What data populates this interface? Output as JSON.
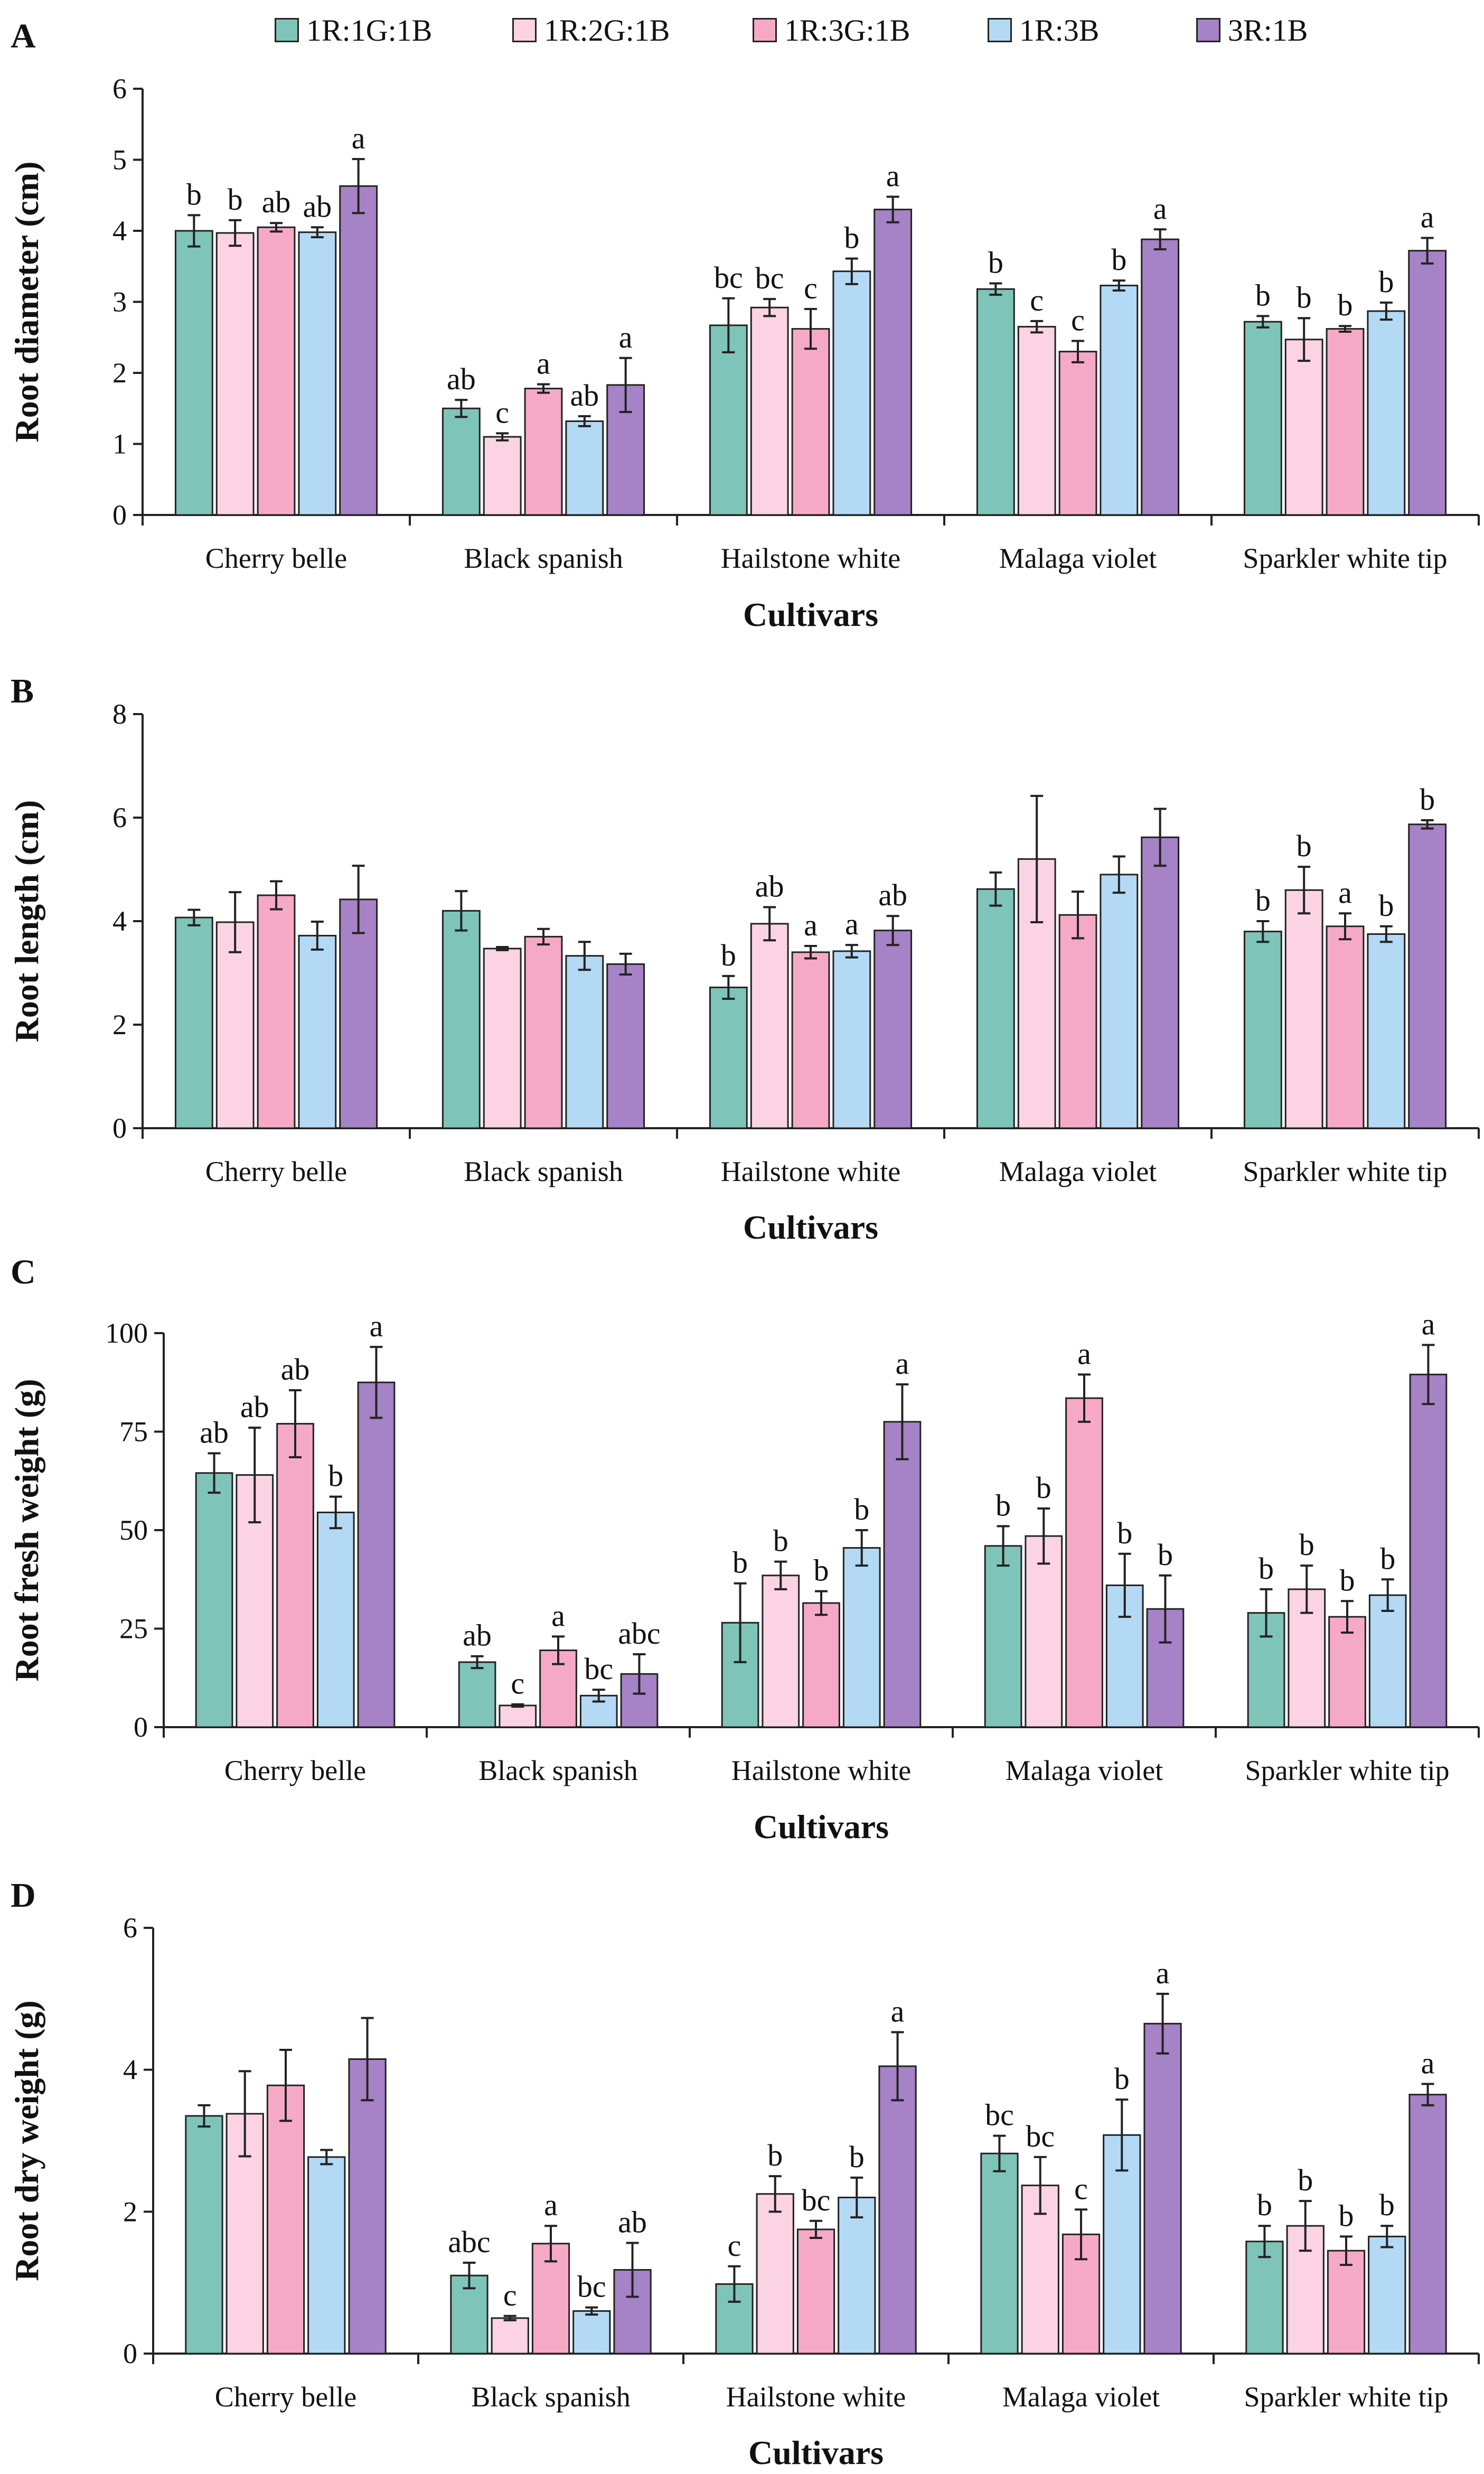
{
  "legend": {
    "items": [
      {
        "label": "1R:1G:1B",
        "color": "#7fc4b8"
      },
      {
        "label": "1R:2G:1B",
        "color": "#fbd3e3"
      },
      {
        "label": "1R:3G:1B",
        "color": "#f6a9c6"
      },
      {
        "label": "1R:3B",
        "color": "#b3d9f5"
      },
      {
        "label": "3R:1B",
        "color": "#a682c6"
      }
    ]
  },
  "chart_data": [
    {
      "type": "bar",
      "panel": "A",
      "xlabel": "Cultivars",
      "ylabel": "Root diameter (cm)",
      "ylim": [
        0,
        6
      ],
      "yticks": [
        "0",
        "1",
        "2",
        "3",
        "4",
        "5",
        "6"
      ],
      "categories": [
        "Cherry belle",
        "Black spanish",
        "Hailstone white",
        "Malaga violet",
        "Sparkler white tip"
      ],
      "series": [
        {
          "name": "1R:1G:1B",
          "values": [
            4.0,
            1.5,
            2.67,
            3.18,
            2.72
          ],
          "errors": [
            0.22,
            0.12,
            0.38,
            0.08,
            0.08
          ],
          "letters": [
            "b",
            "ab",
            "bc",
            "b",
            "b"
          ]
        },
        {
          "name": "1R:2G:1B",
          "values": [
            3.97,
            1.1,
            2.92,
            2.65,
            2.47
          ],
          "errors": [
            0.18,
            0.05,
            0.12,
            0.08,
            0.3
          ],
          "letters": [
            "b",
            "c",
            "bc",
            "c",
            "b"
          ]
        },
        {
          "name": "1R:3G:1B",
          "values": [
            4.05,
            1.78,
            2.62,
            2.3,
            2.62
          ],
          "errors": [
            0.06,
            0.06,
            0.28,
            0.15,
            0.04
          ],
          "letters": [
            "ab",
            "a",
            "c",
            "c",
            "b"
          ]
        },
        {
          "name": "1R:3B",
          "values": [
            3.98,
            1.32,
            3.43,
            3.23,
            2.87
          ],
          "errors": [
            0.07,
            0.07,
            0.18,
            0.07,
            0.12
          ],
          "letters": [
            "ab",
            "ab",
            "b",
            "b",
            "b"
          ]
        },
        {
          "name": "3R:1B",
          "values": [
            4.63,
            1.83,
            4.3,
            3.88,
            3.72
          ],
          "errors": [
            0.38,
            0.38,
            0.18,
            0.14,
            0.18
          ],
          "letters": [
            "a",
            "a",
            "a",
            "a",
            "a"
          ]
        }
      ]
    },
    {
      "type": "bar",
      "panel": "B",
      "xlabel": "Cultivars",
      "ylabel": "Root length (cm)",
      "ylim": [
        0,
        8
      ],
      "yticks": [
        "0",
        "2",
        "4",
        "6",
        "8"
      ],
      "categories": [
        "Cherry belle",
        "Black spanish",
        "Hailstone white",
        "Malaga violet",
        "Sparkler white tip"
      ],
      "series": [
        {
          "name": "1R:1G:1B",
          "values": [
            4.07,
            4.2,
            2.72,
            4.62,
            3.8
          ],
          "errors": [
            0.15,
            0.38,
            0.22,
            0.32,
            0.2
          ],
          "letters": [
            "",
            "",
            "b",
            "",
            "b"
          ]
        },
        {
          "name": "1R:2G:1B",
          "values": [
            3.98,
            3.47,
            3.95,
            5.2,
            4.6
          ],
          "errors": [
            0.58,
            0.03,
            0.32,
            1.22,
            0.45
          ],
          "letters": [
            "",
            "",
            "ab",
            "",
            "b"
          ]
        },
        {
          "name": "1R:3G:1B",
          "values": [
            4.5,
            3.7,
            3.4,
            4.12,
            3.9
          ],
          "errors": [
            0.27,
            0.15,
            0.12,
            0.45,
            0.25
          ],
          "letters": [
            "",
            "",
            "a",
            "",
            "a"
          ]
        },
        {
          "name": "1R:3B",
          "values": [
            3.72,
            3.33,
            3.42,
            4.9,
            3.75
          ],
          "errors": [
            0.27,
            0.27,
            0.12,
            0.35,
            0.15
          ],
          "letters": [
            "",
            "",
            "a",
            "",
            "b"
          ]
        },
        {
          "name": "3R:1B",
          "values": [
            4.42,
            3.17,
            3.82,
            5.62,
            5.87
          ],
          "errors": [
            0.65,
            0.2,
            0.28,
            0.55,
            0.08
          ],
          "letters": [
            "",
            "",
            "ab",
            "",
            "b"
          ]
        }
      ]
    },
    {
      "type": "bar",
      "panel": "C",
      "xlabel": "Cultivars",
      "ylabel": "Root fresh weight (g)",
      "ylim": [
        0,
        100
      ],
      "yticks": [
        "0",
        "25",
        "50",
        "75",
        "100"
      ],
      "categories": [
        "Cherry belle",
        "Black spanish",
        "Hailstone white",
        "Malaga violet",
        "Sparkler white tip"
      ],
      "series": [
        {
          "name": "1R:1G:1B",
          "values": [
            64.5,
            16.5,
            26.5,
            46.0,
            29.0
          ],
          "errors": [
            5.0,
            1.5,
            10.0,
            5.0,
            6.0
          ],
          "letters": [
            "ab",
            "ab",
            "b",
            "b",
            "b"
          ]
        },
        {
          "name": "1R:2G:1B",
          "values": [
            64.0,
            5.5,
            38.5,
            48.5,
            35.0
          ],
          "errors": [
            12.0,
            0.3,
            3.5,
            7.0,
            6.0
          ],
          "letters": [
            "ab",
            "c",
            "b",
            "b",
            "b"
          ]
        },
        {
          "name": "1R:3G:1B",
          "values": [
            77.0,
            19.5,
            31.5,
            83.5,
            28.0
          ],
          "errors": [
            8.5,
            3.5,
            3.0,
            6.0,
            4.0
          ],
          "letters": [
            "ab",
            "a",
            "b",
            "a",
            "b"
          ]
        },
        {
          "name": "1R:3B",
          "values": [
            54.5,
            8.0,
            45.5,
            36.0,
            33.5
          ],
          "errors": [
            4.0,
            1.5,
            4.5,
            8.0,
            4.0
          ],
          "letters": [
            "b",
            "bc",
            "b",
            "b",
            "b"
          ]
        },
        {
          "name": "3R:1B",
          "values": [
            87.5,
            13.5,
            77.5,
            30.0,
            89.5
          ],
          "errors": [
            9.0,
            5.0,
            9.5,
            8.5,
            7.5
          ],
          "letters": [
            "a",
            "abc",
            "a",
            "b",
            "a"
          ]
        }
      ]
    },
    {
      "type": "bar",
      "panel": "D",
      "xlabel": "Cultivars",
      "ylabel": "Root dry weight (g)",
      "ylim": [
        0,
        6
      ],
      "yticks": [
        "0",
        "2",
        "4",
        "6"
      ],
      "categories": [
        "Cherry belle",
        "Black spanish",
        "Hailstone white",
        "Malaga violet",
        "Sparkler white tip"
      ],
      "series": [
        {
          "name": "1R:1G:1B",
          "values": [
            3.35,
            1.1,
            0.98,
            2.82,
            1.58
          ],
          "errors": [
            0.15,
            0.18,
            0.25,
            0.25,
            0.22
          ],
          "letters": [
            "",
            "abc",
            "c",
            "bc",
            "b"
          ]
        },
        {
          "name": "1R:2G:1B",
          "values": [
            3.38,
            0.5,
            2.25,
            2.37,
            1.8
          ],
          "errors": [
            0.6,
            0.03,
            0.25,
            0.4,
            0.35
          ],
          "letters": [
            "",
            "c",
            "b",
            "bc",
            "b"
          ]
        },
        {
          "name": "1R:3G:1B",
          "values": [
            3.78,
            1.55,
            1.75,
            1.68,
            1.45
          ],
          "errors": [
            0.5,
            0.25,
            0.12,
            0.35,
            0.2
          ],
          "letters": [
            "",
            "a",
            "bc",
            "c",
            "b"
          ]
        },
        {
          "name": "1R:3B",
          "values": [
            2.77,
            0.6,
            2.2,
            3.08,
            1.65
          ],
          "errors": [
            0.1,
            0.05,
            0.28,
            0.5,
            0.15
          ],
          "letters": [
            "",
            "bc",
            "b",
            "b",
            "b"
          ]
        },
        {
          "name": "3R:1B",
          "values": [
            4.15,
            1.18,
            4.05,
            4.65,
            3.65
          ],
          "errors": [
            0.58,
            0.38,
            0.48,
            0.42,
            0.15
          ],
          "letters": [
            "",
            "ab",
            "a",
            "a",
            "a"
          ]
        }
      ]
    }
  ]
}
